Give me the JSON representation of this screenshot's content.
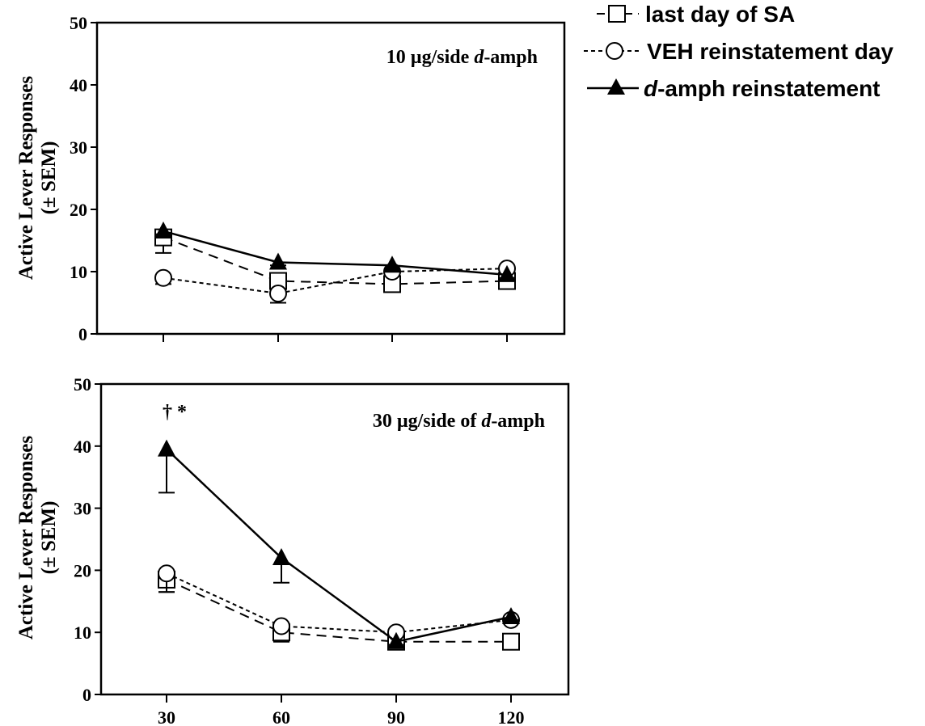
{
  "chart_data": [
    {
      "type": "line",
      "annotation": {
        "dose": "10 µg/side ",
        "drug": "d",
        "suffix": "-amph"
      },
      "ylabel_line1": "Active Lever Responses",
      "ylabel_line2": "(± SEM)",
      "ylim": [
        0,
        50
      ],
      "yticks": [
        0,
        10,
        20,
        30,
        40,
        50
      ],
      "x": [
        30,
        60,
        90,
        120
      ],
      "xtick_labels": [],
      "series": [
        {
          "key": "sa",
          "values": [
            15.5,
            8.5,
            8,
            8.5
          ],
          "sem": [
            2.5,
            0.5,
            0.5,
            0.5
          ]
        },
        {
          "key": "veh",
          "values": [
            9,
            6.5,
            10,
            10.5
          ],
          "sem": [
            1,
            1.5,
            0.5,
            0.5
          ]
        },
        {
          "key": "amph",
          "values": [
            16.5,
            11.5,
            11,
            9.5
          ],
          "sem": [
            0.5,
            0.5,
            0.5,
            0.5
          ]
        }
      ],
      "markers": []
    },
    {
      "type": "line",
      "annotation": {
        "dose": "30 µg/side of ",
        "drug": "d",
        "suffix": "-amph"
      },
      "ylabel_line1": "Active Lever Responses",
      "ylabel_line2": "(± SEM)",
      "ylim": [
        0,
        50
      ],
      "yticks": [
        0,
        10,
        20,
        30,
        40,
        50
      ],
      "x": [
        30,
        60,
        90,
        120
      ],
      "xtick_labels": [
        "30",
        "60",
        "90",
        "120"
      ],
      "series": [
        {
          "key": "sa",
          "values": [
            18.5,
            10,
            8.5,
            8.5
          ],
          "sem": [
            2,
            1.5,
            0.5,
            0.5
          ]
        },
        {
          "key": "veh",
          "values": [
            19.5,
            11,
            10,
            12
          ],
          "sem": [
            3,
            0.5,
            0.5,
            0.5
          ]
        },
        {
          "key": "amph",
          "values": [
            39.5,
            22,
            8.5,
            12.5
          ],
          "sem": [
            7,
            4,
            0.5,
            0.5
          ]
        }
      ],
      "markers": [
        {
          "x": 30,
          "text": "† *"
        }
      ]
    }
  ],
  "legend": [
    {
      "key": "sa",
      "label": "last day of SA",
      "label_prefix": "",
      "style": "long-dash",
      "marker": "open-square"
    },
    {
      "key": "veh",
      "label": "VEH reinstatement day",
      "label_prefix": "",
      "style": "short-dash",
      "marker": "open-circle"
    },
    {
      "key": "amph",
      "label": "-amph reinstatement",
      "label_prefix": "d",
      "style": "solid",
      "marker": "filled-triangle"
    }
  ]
}
